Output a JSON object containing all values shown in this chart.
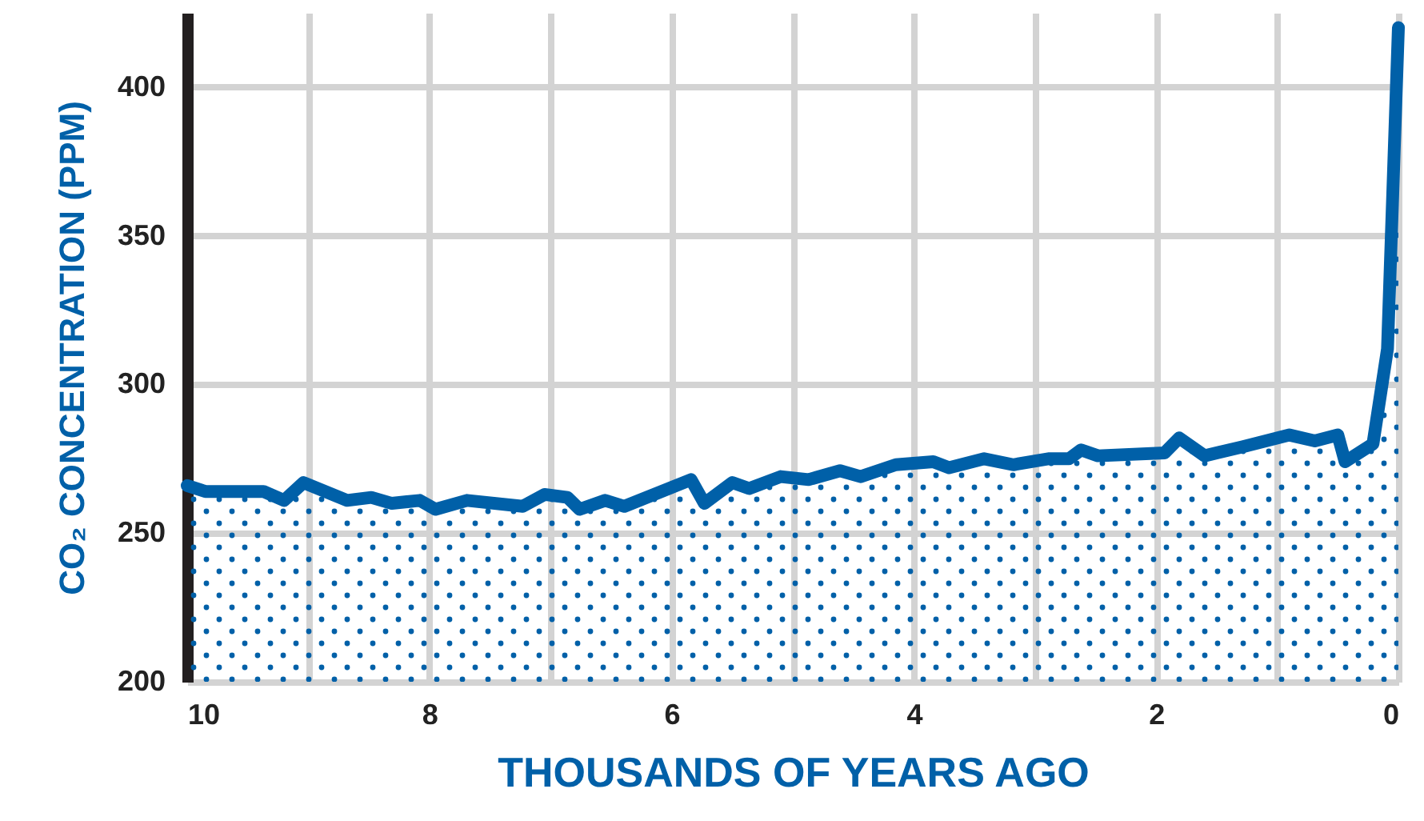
{
  "chart_data": {
    "type": "area",
    "xlabel": "THOUSANDS OF YEARS AGO",
    "ylabel": "CO₂ CONCENTRATION (PPM)",
    "color": "#0060a8",
    "x": [
      10.0,
      9.85,
      9.37,
      9.2,
      9.04,
      8.68,
      8.48,
      8.31,
      8.08,
      7.95,
      7.69,
      7.23,
      7.05,
      6.86,
      6.76,
      6.55,
      6.39,
      5.84,
      5.73,
      5.5,
      5.36,
      5.1,
      4.87,
      4.61,
      4.44,
      4.15,
      3.84,
      3.71,
      3.42,
      3.18,
      2.89,
      2.72,
      2.62,
      2.48,
      1.93,
      1.81,
      1.6,
      1.29,
      0.9,
      0.69,
      0.5,
      0.44,
      0.21,
      0.09,
      0.0
    ],
    "values": [
      266,
      264,
      264,
      261,
      267,
      261,
      262,
      260,
      261,
      258,
      261,
      259,
      263,
      262,
      258,
      261,
      259,
      268,
      260,
      267,
      265,
      269,
      268,
      271,
      269,
      273,
      274,
      272,
      275,
      273,
      275,
      275,
      278,
      276,
      277,
      282,
      276,
      279,
      283,
      281,
      283,
      274,
      280,
      312,
      420
    ],
    "xlim": [
      10,
      0
    ],
    "xticks": [
      10,
      {
        "value": 9,
        "label": null
      },
      8,
      {
        "value": 7,
        "label": null
      },
      6,
      {
        "value": 5,
        "label": null
      },
      4,
      {
        "value": 3,
        "label": null
      },
      2,
      {
        "value": 1,
        "label": null
      },
      0
    ],
    "ylim": [
      200,
      425
    ],
    "yticks": [
      200,
      250,
      300,
      350,
      400
    ],
    "grid": true
  }
}
